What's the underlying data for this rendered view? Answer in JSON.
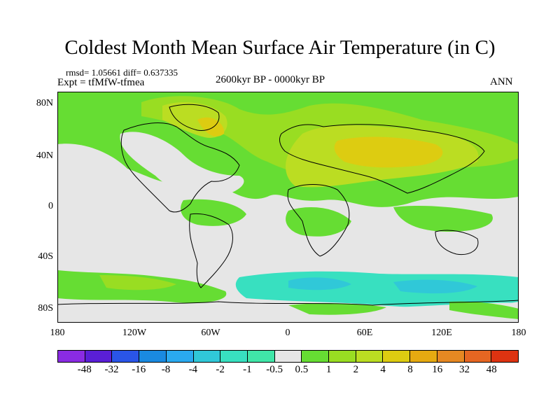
{
  "title": "Coldest Month Mean Surface Air Temperature (in C)",
  "stats": {
    "rmsd_text": "rmsd= 1.05661 diff= 0.637335",
    "expt_text": "Expt = tfMfW-tfmea"
  },
  "period": "2600kyr BP - 0000kyr BP",
  "season": "ANN",
  "y_ticks": [
    "80N",
    "40N",
    "0",
    "40S",
    "80S"
  ],
  "x_ticks": [
    "180",
    "120W",
    "60W",
    "0",
    "60E",
    "120E",
    "180"
  ],
  "colorbar": {
    "colors": [
      "#8a2be2",
      "#5a1fd6",
      "#2a55e8",
      "#1a8ae0",
      "#2aaaf0",
      "#30c8d8",
      "#38e0c0",
      "#40e6a8",
      "#e6e6e6",
      "#66dd33",
      "#99dd22",
      "#bbdd22",
      "#ddcc11",
      "#e6aa11",
      "#e68822",
      "#e66622",
      "#dd3311"
    ],
    "labels": [
      "-48",
      "-32",
      "-16",
      "-8",
      "-4",
      "-2",
      "-1",
      "-0.5",
      "0.5",
      "1",
      "2",
      "4",
      "8",
      "16",
      "32",
      "48"
    ]
  },
  "colors": {
    "neutral": "#e6e6e6",
    "pos1": "#66dd33",
    "pos2": "#99dd22",
    "pos3": "#bbdd22",
    "pos4": "#ddcc11",
    "neg_light": "#38e0c0"
  }
}
